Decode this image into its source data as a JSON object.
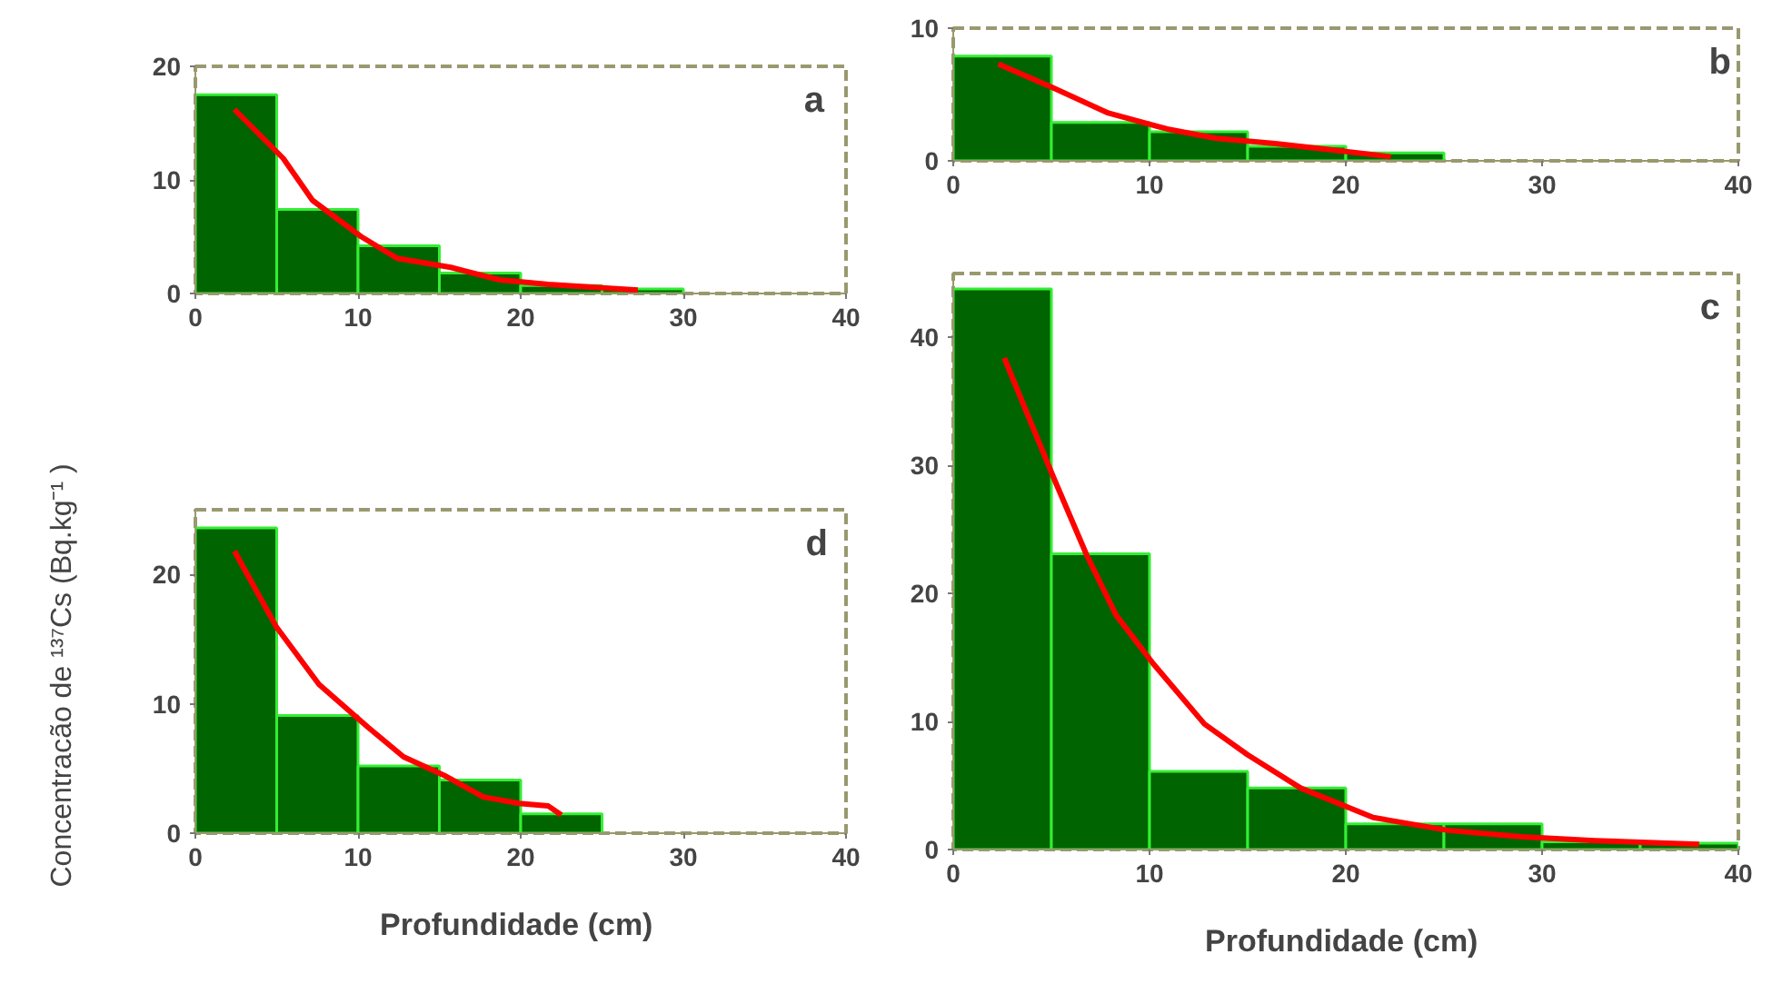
{
  "chart_data": [
    {
      "type": "histogram",
      "annotations": [
        "a"
      ],
      "bins": [
        0,
        5,
        10,
        15,
        20,
        25,
        30
      ],
      "values": [
        17.5,
        7.4,
        4.2,
        1.8,
        0.7,
        0.4
      ],
      "color": "#006400",
      "xlim": [
        0,
        40
      ],
      "xticks": [
        0,
        10,
        20,
        30,
        40
      ],
      "ylim": [
        0,
        20
      ],
      "yticks": [
        0,
        10,
        20
      ],
      "grid": false,
      "series": [
        {
          "type": "line",
          "color": "#ff0000",
          "x": [
            2.4,
            5.4,
            7.2,
            10.2,
            12.4,
            15.7,
            18.7,
            21.7,
            27.2
          ],
          "values": [
            16.2,
            11.9,
            8.2,
            5.0,
            3.1,
            2.3,
            1.2,
            0.8,
            0.3
          ]
        }
      ]
    },
    {
      "type": "histogram",
      "annotations": [
        "b"
      ],
      "bins": [
        0,
        5,
        10,
        15,
        20,
        25
      ],
      "values": [
        7.9,
        2.9,
        2.2,
        1.1,
        0.6
      ],
      "color": "#006400",
      "xlim": [
        0,
        40
      ],
      "xticks": [
        0,
        10,
        20,
        30,
        40
      ],
      "ylim": [
        0,
        10
      ],
      "yticks": [
        0,
        10
      ],
      "grid": false,
      "series": [
        {
          "type": "line",
          "color": "#ff0000",
          "x": [
            2.3,
            5.1,
            7.9,
            10.9,
            13.4,
            16.4,
            19.4,
            22.3
          ],
          "values": [
            7.3,
            5.5,
            3.6,
            2.4,
            1.7,
            1.3,
            0.8,
            0.3
          ]
        }
      ]
    },
    {
      "type": "histogram",
      "annotations": [
        "d"
      ],
      "xlabel": "Profundidade  (cm)",
      "ylabel": "Concentracão de ¹³⁷Cs  (Bq.kg⁻¹ )",
      "bins": [
        0,
        5,
        10,
        15,
        20,
        25
      ],
      "values": [
        23.6,
        9.1,
        5.2,
        4.1,
        1.5
      ],
      "color": "#006400",
      "xlim": [
        0,
        40
      ],
      "xticks": [
        0,
        10,
        20,
        30,
        40
      ],
      "ylim": [
        0,
        25
      ],
      "yticks": [
        0,
        10,
        20
      ],
      "grid": false,
      "series": [
        {
          "type": "line",
          "color": "#ff0000",
          "x": [
            2.4,
            5.0,
            7.6,
            10.6,
            12.8,
            15.4,
            17.7,
            19.9,
            21.7,
            22.5
          ],
          "values": [
            21.8,
            15.9,
            11.5,
            8.2,
            5.9,
            4.4,
            2.8,
            2.3,
            2.1,
            1.4
          ]
        }
      ]
    },
    {
      "type": "histogram",
      "annotations": [
        "c"
      ],
      "xlabel": "Profundidade  (cm)",
      "bins": [
        0,
        5,
        10,
        15,
        20,
        25,
        30,
        35,
        40
      ],
      "values": [
        43.8,
        23.1,
        6.1,
        4.8,
        2.0,
        2.0,
        0.6,
        0.5
      ],
      "color": "#006400",
      "xlim": [
        0,
        40
      ],
      "xticks": [
        0,
        10,
        20,
        30,
        40
      ],
      "ylim": [
        0,
        45
      ],
      "yticks": [
        0,
        10,
        20,
        30,
        40
      ],
      "grid": false,
      "series": [
        {
          "type": "line",
          "color": "#ff0000",
          "x": [
            2.6,
            5.1,
            6.8,
            8.3,
            10.2,
            12.8,
            15.0,
            17.7,
            21.4,
            25.2,
            29.0,
            32.7,
            38.0
          ],
          "values": [
            38.4,
            29.1,
            23.0,
            18.3,
            14.5,
            9.8,
            7.4,
            4.8,
            2.5,
            1.5,
            1.0,
            0.7,
            0.4
          ]
        }
      ]
    }
  ]
}
